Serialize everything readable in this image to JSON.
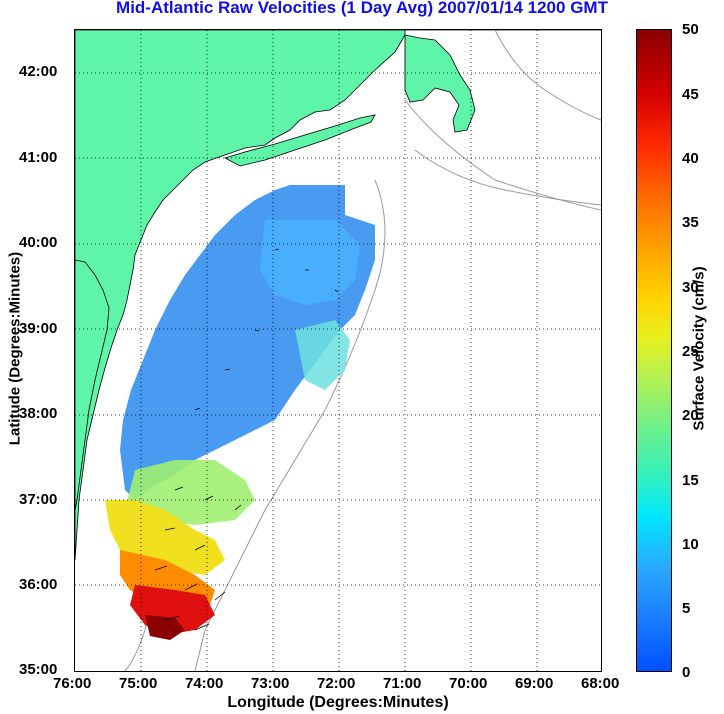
{
  "title": "Mid-Atlantic Raw Velocities (1 Day Avg) 2007/01/14 1200 GMT",
  "x_axis": {
    "label": "Longitude (Degrees:Minutes)",
    "ticks": [
      "76:00",
      "75:00",
      "74:00",
      "73:00",
      "72:00",
      "71:00",
      "70:00",
      "69:00",
      "68:00"
    ]
  },
  "y_axis": {
    "label": "Latitude (Degrees:Minutes)",
    "ticks": [
      "35:00",
      "36:00",
      "37:00",
      "38:00",
      "39:00",
      "40:00",
      "41:00",
      "42:00"
    ]
  },
  "colorbar": {
    "label": "Surface Velocity (cm/s)",
    "ticks": [
      "0",
      "5",
      "10",
      "15",
      "20",
      "25",
      "30",
      "35",
      "40",
      "45",
      "50"
    ],
    "range": [
      0,
      50
    ]
  },
  "colors": {
    "land": "#5ff5a8",
    "title": "#1010e6",
    "grid": "#000000",
    "contour": "#999999"
  },
  "map_extent": {
    "lon_min": -76,
    "lon_max": -68,
    "lat_min": 35,
    "lat_max": 42.5
  }
}
